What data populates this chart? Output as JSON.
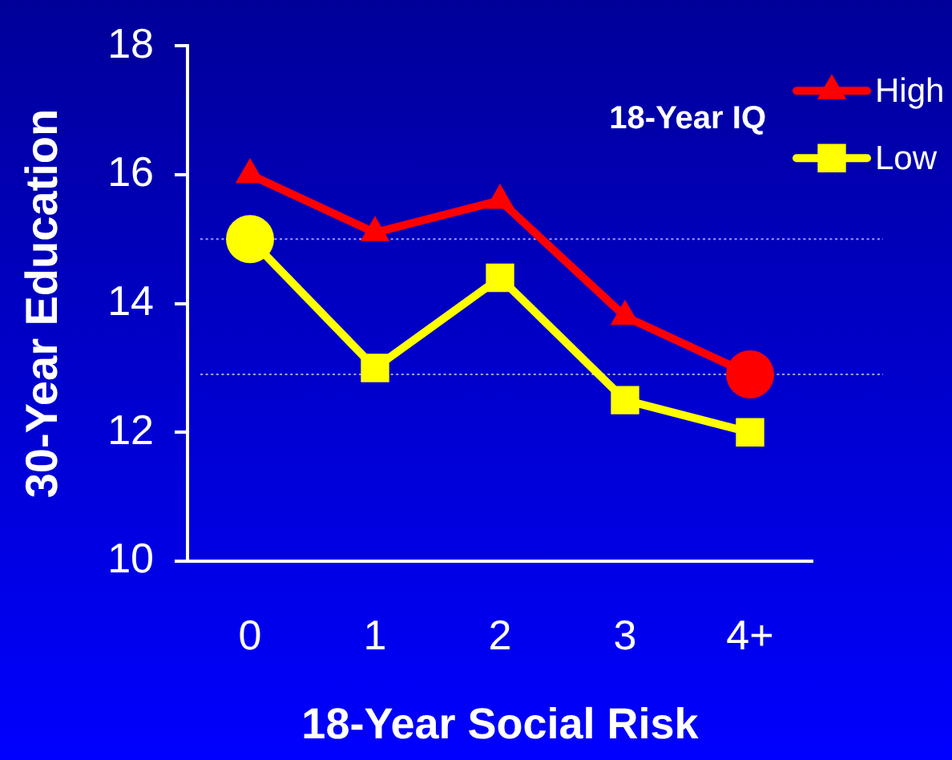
{
  "chart_data": {
    "type": "line",
    "xlabel": "18-Year Social Risk",
    "ylabel": "30-Year Education",
    "legend_title": "18-Year IQ",
    "categories": [
      "0",
      "1",
      "2",
      "3",
      "4+"
    ],
    "series": [
      {
        "name": "High",
        "color": "#ff0000",
        "marker": "triangle",
        "values": [
          16.0,
          15.1,
          15.6,
          13.8,
          12.9
        ]
      },
      {
        "name": "Low",
        "color": "#ffff00",
        "marker": "square",
        "values": [
          15.0,
          13.0,
          14.4,
          12.5,
          12.0
        ]
      },
      {
        "type": "scatter",
        "x": [
          "0",
          "4+"
        ],
        "values": [
          15.0,
          12.9
        ],
        "colors": [
          "#ffff00",
          "#ff0000"
        ],
        "marker": "circle"
      }
    ],
    "ylim": [
      10,
      18
    ],
    "yticks": [
      10,
      12,
      14,
      16,
      18
    ],
    "legend": "top right",
    "ref_lines": [
      {
        "axis": "y",
        "value": 15.0,
        "color": "#a0a0ff",
        "line_style": "dotted"
      },
      {
        "axis": "y",
        "value": 12.9,
        "color": "#a0a0ff",
        "line_style": "dotted"
      }
    ]
  }
}
